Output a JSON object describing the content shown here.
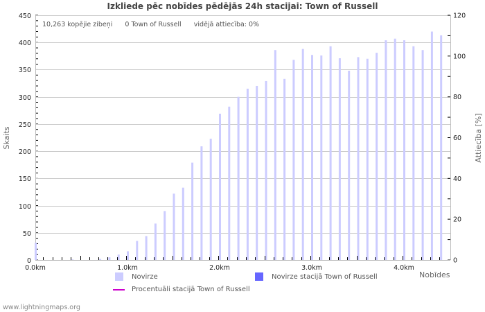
{
  "title": "Izkliede pēc nobīdes pēdējās 24h stacijai: Town of Russell",
  "info": {
    "total": "10,263 kopējie zibeņi",
    "station": "0 Town of Russell",
    "ratio": "vidējā attiecība: 0%"
  },
  "axes": {
    "left_label": "Skaits",
    "right_label": "Attiecība [%]",
    "x_label": "Nobīdes"
  },
  "legend": {
    "deviation": "Novirze",
    "station_deviation": "Novirze stacijā Town of Russell",
    "station_percent": "Procentuāli stacijā Town of Russell"
  },
  "colors": {
    "bar": "#ccccff",
    "station_bar": "#6666ff",
    "percent_line": "#cc00cc",
    "grid": "#cccccc"
  },
  "footer": "www.lightningmaps.org",
  "chart_data": {
    "type": "bar",
    "title": "Izkliede pēc nobīdes pēdējās 24h stacijai: Town of Russell",
    "xlabel": "Nobīdes",
    "ylabel": "Skaits",
    "y2label": "Attiecība [%]",
    "ylim": [
      0,
      450
    ],
    "y2lim": [
      0,
      120
    ],
    "yticks": [
      0,
      50,
      100,
      150,
      200,
      250,
      300,
      350,
      400,
      450
    ],
    "y2ticks": [
      0,
      20,
      40,
      60,
      80,
      100,
      120
    ],
    "xtick_labels": [
      "0.0km",
      "1.0km",
      "2.0km",
      "3.0km",
      "4.0km"
    ],
    "grid": true,
    "categories": [
      "0.0",
      "0.1",
      "0.2",
      "0.3",
      "0.4",
      "0.5",
      "0.6",
      "0.7",
      "0.8",
      "0.9",
      "1.0",
      "1.1",
      "1.2",
      "1.3",
      "1.4",
      "1.5",
      "1.6",
      "1.7",
      "1.8",
      "1.9",
      "2.0",
      "2.1",
      "2.2",
      "2.3",
      "2.4",
      "2.5",
      "2.6",
      "2.7",
      "2.8",
      "2.9",
      "3.0",
      "3.1",
      "3.2",
      "3.3",
      "3.4",
      "3.5",
      "3.6",
      "3.7",
      "3.8",
      "3.9",
      "4.0",
      "4.1",
      "4.2",
      "4.3",
      "4.4"
    ],
    "series": [
      {
        "name": "Novirze",
        "values": [
          32,
          0,
          0,
          0,
          1,
          0,
          0,
          2,
          5,
          10,
          16,
          35,
          44,
          67,
          90,
          122,
          133,
          179,
          209,
          223,
          269,
          282,
          300,
          315,
          320,
          329,
          386,
          333,
          368,
          388,
          377,
          376,
          393,
          371,
          348,
          373,
          370,
          381,
          404,
          407,
          404,
          393,
          386,
          420,
          413
        ]
      },
      {
        "name": "Novirze stacijā Town of Russell",
        "values": [
          0,
          0,
          0,
          0,
          0,
          0,
          0,
          0,
          0,
          0,
          0,
          0,
          0,
          0,
          0,
          0,
          0,
          0,
          0,
          0,
          0,
          0,
          0,
          0,
          0,
          0,
          0,
          0,
          0,
          0,
          0,
          0,
          0,
          0,
          0,
          0,
          0,
          0,
          0,
          0,
          0,
          0,
          0,
          0,
          0
        ]
      },
      {
        "name": "Procentuāli stacijā Town of Russell",
        "values": []
      }
    ]
  }
}
